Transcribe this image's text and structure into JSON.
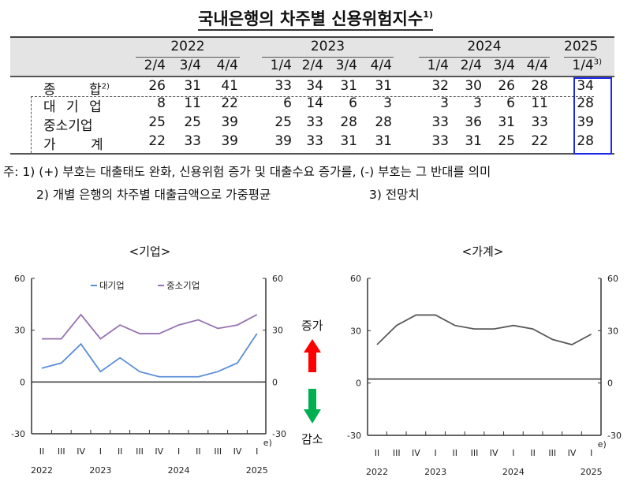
{
  "title": {
    "text": "국내은행의 차주별 신용위험지수",
    "footnote_mark": "1)"
  },
  "table": {
    "years": [
      {
        "label": "2022",
        "span": 3
      },
      {
        "label": "2023",
        "span": 4
      },
      {
        "label": "2024",
        "span": 4
      },
      {
        "label": "2025",
        "span": 1
      }
    ],
    "quarters": [
      "2/4",
      "3/4",
      "4/4",
      "1/4",
      "2/4",
      "3/4",
      "4/4",
      "1/4",
      "2/4",
      "3/4",
      "4/4",
      "1/4"
    ],
    "last_quarter_note": "3)",
    "rows": [
      {
        "label_a": "종",
        "label_b": "합",
        "note": "2)",
        "values": [
          "26",
          "31",
          "41",
          "33",
          "34",
          "31",
          "31",
          "32",
          "30",
          "26",
          "28",
          "34"
        ]
      },
      {
        "label_a": "대 기 업",
        "label_b": "",
        "note": "",
        "values": [
          "8",
          "11",
          "22",
          "6",
          "14",
          "6",
          "3",
          "3",
          "3",
          "6",
          "11",
          "28"
        ]
      },
      {
        "label_a": "중소기업",
        "label_b": "",
        "note": "",
        "values": [
          "25",
          "25",
          "39",
          "25",
          "33",
          "28",
          "28",
          "33",
          "36",
          "31",
          "33",
          "39"
        ]
      },
      {
        "label_a": "가",
        "label_b": "계",
        "note": "",
        "values": [
          "22",
          "33",
          "39",
          "39",
          "33",
          "31",
          "31",
          "33",
          "31",
          "25",
          "22",
          "28"
        ]
      }
    ],
    "highlight_color": "#1d28e8"
  },
  "notes": {
    "line1": "주: 1) (+) 부호는 대출태도 완화, 신용위험 증가 및 대출수요 증가를, (-) 부호는 그 반대를 의미",
    "line2": "2) 개별 은행의 차주별 대출금액으로 가중평균",
    "line2b": "3) 전망치"
  },
  "arrows": {
    "up_label": "증가",
    "down_label": "감소",
    "up_color": "#ff0000",
    "down_color": "#00b050"
  },
  "chart_data": [
    {
      "type": "line",
      "title": "<기업>",
      "categories": [
        "II",
        "III",
        "IV",
        "I",
        "II",
        "III",
        "IV",
        "I",
        "II",
        "III",
        "IV",
        "I"
      ],
      "category_years": [
        {
          "label": "2022",
          "index": 0
        },
        {
          "label": "2023",
          "index": 3
        },
        {
          "label": "2024",
          "index": 7
        },
        {
          "label": "2025",
          "index": 11
        }
      ],
      "last_category_note": "e)",
      "series": [
        {
          "name": "대기업",
          "color": "#5b8fd6",
          "values": [
            8,
            11,
            22,
            6,
            14,
            6,
            3,
            3,
            3,
            6,
            11,
            28
          ]
        },
        {
          "name": "중소기업",
          "color": "#9673b0",
          "values": [
            25,
            25,
            39,
            25,
            33,
            28,
            28,
            33,
            36,
            31,
            33,
            39
          ]
        }
      ],
      "ylim": [
        -30,
        60
      ],
      "yticks": [
        -30,
        0,
        30,
        60
      ],
      "dual_axis": true,
      "legend_position": "top",
      "grid": false
    },
    {
      "type": "line",
      "title": "<가계>",
      "categories": [
        "II",
        "III",
        "IV",
        "I",
        "II",
        "III",
        "IV",
        "I",
        "II",
        "III",
        "IV",
        "I"
      ],
      "category_years": [
        {
          "label": "2022",
          "index": 0
        },
        {
          "label": "2023",
          "index": 3
        },
        {
          "label": "2024",
          "index": 7
        },
        {
          "label": "2025",
          "index": 11
        }
      ],
      "last_category_note": "e)",
      "series": [
        {
          "name": "가계",
          "color": "#595959",
          "values": [
            22,
            33,
            39,
            39,
            33,
            31,
            31,
            33,
            31,
            25,
            22,
            28
          ]
        }
      ],
      "ylim": [
        -30,
        60
      ],
      "yticks": [
        -30,
        0,
        30,
        60
      ],
      "dual_axis": true,
      "grid": false
    }
  ]
}
